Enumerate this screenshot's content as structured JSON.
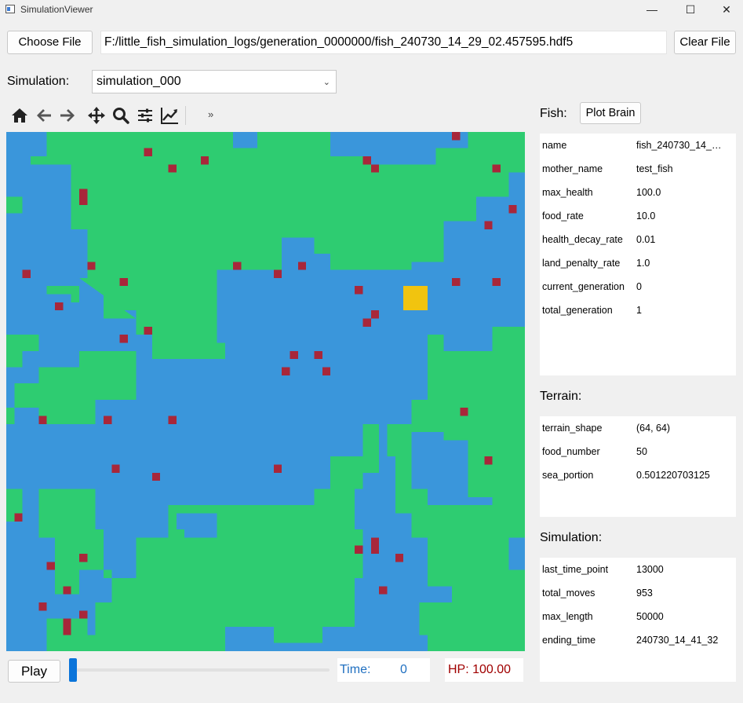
{
  "window": {
    "title": "SimulationViewer",
    "controls": [
      "—",
      "☐",
      "✕"
    ]
  },
  "file": {
    "choose_label": "Choose File",
    "path": "F:/little_fish_simulation_logs/generation_0000000/fish_240730_14_29_02.457595.hdf5",
    "clear_label": "Clear File"
  },
  "simulation_select": {
    "label": "Simulation:",
    "value": "simulation_000"
  },
  "toolbar": {
    "icons": [
      "home-icon",
      "back-arrow-icon",
      "forward-arrow-icon",
      "pan-icon",
      "zoom-icon",
      "configure-subplots-icon",
      "edit-axis-icon",
      "more-icon"
    ],
    "more": "»"
  },
  "fish": {
    "title": "Fish:",
    "plot_brain_label": "Plot Brain",
    "rows": [
      {
        "key": "name",
        "value": "fish_240730_14_2..."
      },
      {
        "key": "mother_name",
        "value": "test_fish"
      },
      {
        "key": "max_health",
        "value": "100.0"
      },
      {
        "key": "food_rate",
        "value": "10.0"
      },
      {
        "key": "health_decay_rate",
        "value": "0.01"
      },
      {
        "key": "land_penalty_rate",
        "value": "1.0"
      },
      {
        "key": "current_generation",
        "value": "0"
      },
      {
        "key": "total_generation",
        "value": "1"
      }
    ]
  },
  "terrain": {
    "title": "Terrain:",
    "rows": [
      {
        "key": "terrain_shape",
        "value": "(64, 64)"
      },
      {
        "key": "food_number",
        "value": "50"
      },
      {
        "key": "sea_portion",
        "value": "0.501220703125"
      }
    ]
  },
  "simulation": {
    "title": "Simulation:",
    "rows": [
      {
        "key": "last_time_point",
        "value": "13000"
      },
      {
        "key": "total_moves",
        "value": "953"
      },
      {
        "key": "max_length",
        "value": "50000"
      },
      {
        "key": "ending_time",
        "value": "240730_14_41_32"
      }
    ]
  },
  "playback": {
    "play_label": "Play",
    "time_label": "Time:",
    "time_value": "0",
    "hp_text": "HP: 100.00",
    "slider_fraction": 0
  },
  "colors": {
    "sea": "#3a96db",
    "land": "#2ecc71",
    "food": "#a8273a",
    "fish": "#f1c40f",
    "time_text": "#1f6fc0",
    "hp_text": "#a00000"
  }
}
